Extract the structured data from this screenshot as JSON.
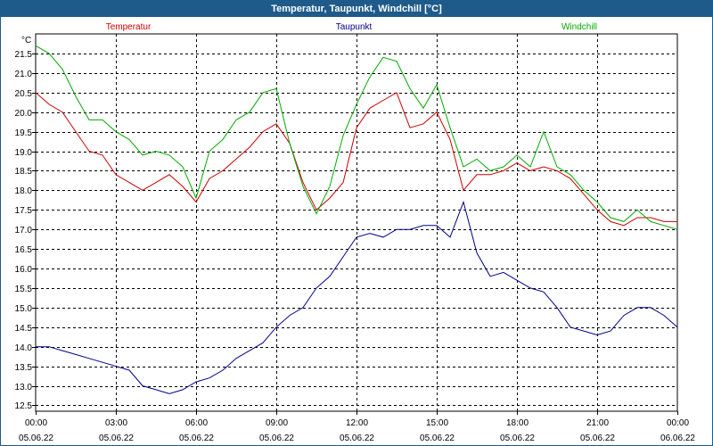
{
  "window": {
    "title": "Temperatur, Taupunkt, Windchill [°C]"
  },
  "chart_data": {
    "type": "line",
    "title": "Temperatur, Taupunkt, Windchill [°C]",
    "ylabel": "°C",
    "xlabel": "",
    "ylim": [
      12.35,
      22.0
    ],
    "xlim": [
      0,
      24
    ],
    "grid": true,
    "yticks": [
      12.5,
      13.0,
      13.5,
      14.0,
      14.5,
      15.0,
      15.5,
      16.0,
      16.5,
      17.0,
      17.5,
      18.0,
      18.5,
      19.0,
      19.5,
      20.0,
      20.5,
      21.0,
      21.5
    ],
    "ytick_labels": [
      "12.5",
      "13.0",
      "13.5",
      "14.0",
      "14.5",
      "15.0",
      "15.5",
      "16.0",
      "16.5",
      "17.0",
      "17.5",
      "18.0",
      "18.5",
      "19.0",
      "19.5",
      "20.0",
      "20.5",
      "21.0",
      "21.5"
    ],
    "xticks": [
      {
        "time": "00:00",
        "date": "05.06.22",
        "hour": 0
      },
      {
        "time": "03:00",
        "date": "05.06.22",
        "hour": 3
      },
      {
        "time": "06:00",
        "date": "05.06.22",
        "hour": 6
      },
      {
        "time": "09:00",
        "date": "05.06.22",
        "hour": 9
      },
      {
        "time": "12:00",
        "date": "05.06.22",
        "hour": 12
      },
      {
        "time": "15:00",
        "date": "05.06.22",
        "hour": 15
      },
      {
        "time": "18:00",
        "date": "05.06.22",
        "hour": 18
      },
      {
        "time": "21:00",
        "date": "05.06.22",
        "hour": 21
      },
      {
        "time": "00:00",
        "date": "06.06.22",
        "hour": 24
      }
    ],
    "series": [
      {
        "name": "Temperatur",
        "color": "#cc0000",
        "x": [
          0,
          0.5,
          1,
          1.5,
          2,
          2.5,
          3,
          3.5,
          4,
          4.5,
          5,
          5.5,
          6,
          6.5,
          7,
          7.5,
          8,
          8.5,
          9,
          9.5,
          10,
          10.5,
          11,
          11.5,
          12,
          12.5,
          13,
          13.5,
          14,
          14.5,
          15,
          15.5,
          16,
          16.5,
          17,
          17.5,
          18,
          18.5,
          19,
          19.5,
          20,
          20.5,
          21,
          21.5,
          22,
          22.5,
          23,
          23.5,
          24
        ],
        "values": [
          20.5,
          20.2,
          20.0,
          19.5,
          19.0,
          18.9,
          18.4,
          18.2,
          18.0,
          18.2,
          18.4,
          18.1,
          17.7,
          18.3,
          18.5,
          18.8,
          19.1,
          19.5,
          19.7,
          19.2,
          18.2,
          17.5,
          17.8,
          18.2,
          19.6,
          20.1,
          20.3,
          20.5,
          19.6,
          19.7,
          20.0,
          19.3,
          18.0,
          18.4,
          18.4,
          18.5,
          18.7,
          18.5,
          18.6,
          18.5,
          18.3,
          17.9,
          17.5,
          17.2,
          17.1,
          17.3,
          17.3,
          17.2,
          17.2
        ]
      },
      {
        "name": "Taupunkt",
        "color": "#00008b",
        "x": [
          0,
          0.5,
          1,
          1.5,
          2,
          2.5,
          3,
          3.5,
          4,
          4.5,
          5,
          5.5,
          6,
          6.5,
          7,
          7.5,
          8,
          8.5,
          9,
          9.5,
          10,
          10.5,
          11,
          11.5,
          12,
          12.5,
          13,
          13.5,
          14,
          14.5,
          15,
          15.5,
          16,
          16.5,
          17,
          17.5,
          18,
          18.5,
          19,
          19.5,
          20,
          20.5,
          21,
          21.5,
          22,
          22.5,
          23,
          23.5,
          24
        ],
        "values": [
          14.0,
          14.0,
          13.9,
          13.8,
          13.7,
          13.6,
          13.5,
          13.4,
          13.0,
          12.9,
          12.8,
          12.9,
          13.1,
          13.2,
          13.4,
          13.7,
          13.9,
          14.1,
          14.5,
          14.8,
          15.0,
          15.5,
          15.8,
          16.3,
          16.8,
          16.9,
          16.8,
          17.0,
          17.0,
          17.1,
          17.1,
          16.8,
          17.7,
          16.4,
          15.8,
          15.9,
          15.7,
          15.5,
          15.4,
          15.0,
          14.5,
          14.4,
          14.3,
          14.4,
          14.8,
          15.0,
          15.0,
          14.8,
          14.5
        ]
      },
      {
        "name": "Windchill",
        "color": "#00aa00",
        "x": [
          0,
          0.5,
          1,
          1.5,
          2,
          2.5,
          3,
          3.5,
          4,
          4.5,
          5,
          5.5,
          6,
          6.5,
          7,
          7.5,
          8,
          8.5,
          9,
          9.5,
          10,
          10.5,
          11,
          11.5,
          12,
          12.5,
          13,
          13.5,
          14,
          14.5,
          15,
          15.5,
          16,
          16.5,
          17,
          17.5,
          18,
          18.5,
          19,
          19.5,
          20,
          20.5,
          21,
          21.5,
          22,
          22.5,
          23,
          23.5,
          24
        ],
        "values": [
          21.7,
          21.5,
          21.1,
          20.4,
          19.8,
          19.8,
          19.5,
          19.3,
          18.9,
          19.0,
          18.9,
          18.6,
          17.8,
          19.0,
          19.3,
          19.8,
          20.0,
          20.5,
          20.6,
          19.2,
          18.1,
          17.4,
          18.1,
          19.4,
          20.2,
          20.9,
          21.4,
          21.3,
          20.6,
          20.1,
          20.7,
          19.6,
          18.6,
          18.8,
          18.5,
          18.6,
          18.9,
          18.6,
          19.5,
          18.6,
          18.4,
          18.0,
          17.7,
          17.3,
          17.2,
          17.5,
          17.2,
          17.1,
          17.0
        ]
      }
    ]
  }
}
